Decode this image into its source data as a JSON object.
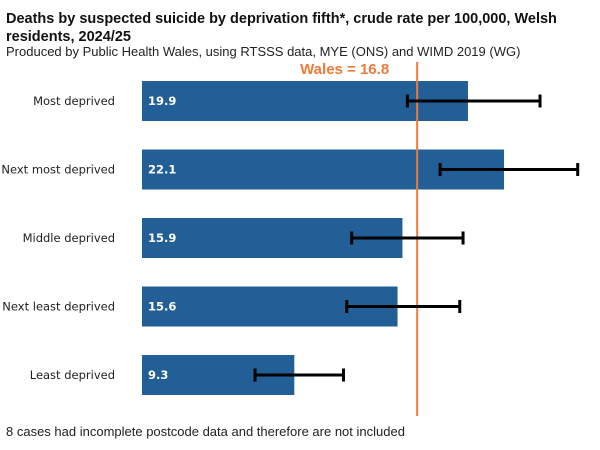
{
  "chart_data": {
    "type": "bar",
    "orientation": "horizontal",
    "title": "Deaths by suspected suicide by deprivation fifth*, crude rate per 100,000, Welsh residents, 2024/25",
    "subtitle": "Produced by Public Health Wales, using RTSSS data, MYE (ONS) and WIMD 2019 (WG)",
    "footnote": "8 cases had incomplete postcode data and therefore are not included",
    "xlabel": "",
    "ylabel": "",
    "xlim": [
      0,
      27.5
    ],
    "grid": false,
    "categories": [
      "Most deprived",
      "Next most deprived",
      "Middle deprived",
      "Next least deprived",
      "Least deprived"
    ],
    "values": [
      19.9,
      22.1,
      15.9,
      15.6,
      9.3
    ],
    "value_labels": [
      "19.9",
      "22.1",
      "15.9",
      "15.6",
      "9.3"
    ],
    "ci_lower": [
      16.2,
      18.2,
      12.8,
      12.5,
      6.9
    ],
    "ci_upper": [
      24.3,
      26.6,
      19.6,
      19.4,
      12.3
    ],
    "reference_line": {
      "label": "Wales = 16.8",
      "value": 16.8
    },
    "colors": {
      "bar": "#215F96",
      "reference": "#F07A3A",
      "error_bar": "#000000",
      "value_text": "#FFFFFF"
    }
  }
}
